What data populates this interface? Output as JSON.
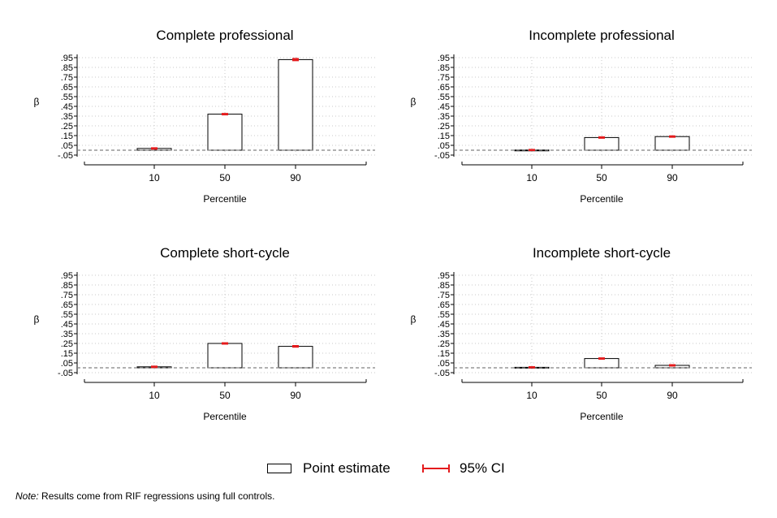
{
  "chart_data": [
    {
      "type": "bar",
      "title": "Complete professional",
      "xlabel": "Percentile",
      "ylabel": "β",
      "categories": [
        "10",
        "50",
        "90"
      ],
      "series": [
        {
          "values": [
            0.018,
            0.37,
            0.93
          ],
          "ci_low": [
            0.014,
            0.366,
            0.922
          ],
          "ci_high": [
            0.022,
            0.374,
            0.938
          ]
        }
      ],
      "ylim": [
        -0.05,
        0.95
      ],
      "yticks": [
        0.95,
        0.85,
        0.75,
        0.65,
        0.55,
        0.45,
        0.35,
        0.25,
        0.15,
        0.05,
        -0.05
      ],
      "ytick_labels": [
        ".95",
        ".85",
        ".75",
        ".65",
        ".55",
        ".45",
        ".35",
        ".25",
        ".15",
        ".05",
        "-.05"
      ],
      "reference_line": 0,
      "grid": true
    },
    {
      "type": "bar",
      "title": "Incomplete professional",
      "xlabel": "Percentile",
      "ylabel": "β",
      "categories": [
        "10",
        "50",
        "90"
      ],
      "series": [
        {
          "values": [
            0.002,
            0.13,
            0.14
          ],
          "ci_low": [
            -0.001,
            0.126,
            0.136
          ],
          "ci_high": [
            0.005,
            0.134,
            0.144
          ]
        }
      ],
      "ylim": [
        -0.05,
        0.95
      ],
      "yticks": [
        0.95,
        0.85,
        0.75,
        0.65,
        0.55,
        0.45,
        0.35,
        0.25,
        0.15,
        0.05,
        -0.05
      ],
      "ytick_labels": [
        ".95",
        ".85",
        ".75",
        ".65",
        ".55",
        ".45",
        ".35",
        ".25",
        ".15",
        ".05",
        "-.05"
      ],
      "reference_line": 0,
      "grid": true
    },
    {
      "type": "bar",
      "title": "Complete short-cycle",
      "xlabel": "Percentile",
      "ylabel": "β",
      "categories": [
        "10",
        "50",
        "90"
      ],
      "series": [
        {
          "values": [
            0.01,
            0.25,
            0.22
          ],
          "ci_low": [
            0.006,
            0.246,
            0.215
          ],
          "ci_high": [
            0.014,
            0.254,
            0.225
          ]
        }
      ],
      "ylim": [
        -0.05,
        0.95
      ],
      "yticks": [
        0.95,
        0.85,
        0.75,
        0.65,
        0.55,
        0.45,
        0.35,
        0.25,
        0.15,
        0.05,
        -0.05
      ],
      "ytick_labels": [
        ".95",
        ".85",
        ".75",
        ".65",
        ".55",
        ".45",
        ".35",
        ".25",
        ".15",
        ".05",
        "-.05"
      ],
      "reference_line": 0,
      "grid": true
    },
    {
      "type": "bar",
      "title": "Incomplete short-cycle",
      "xlabel": "Percentile",
      "ylabel": "β",
      "categories": [
        "10",
        "50",
        "90"
      ],
      "series": [
        {
          "values": [
            0.005,
            0.095,
            0.025
          ],
          "ci_low": [
            0.002,
            0.091,
            0.021
          ],
          "ci_high": [
            0.008,
            0.099,
            0.029
          ]
        }
      ],
      "ylim": [
        -0.05,
        0.95
      ],
      "yticks": [
        0.95,
        0.85,
        0.75,
        0.65,
        0.55,
        0.45,
        0.35,
        0.25,
        0.15,
        0.05,
        -0.05
      ],
      "ytick_labels": [
        ".95",
        ".85",
        ".75",
        ".65",
        ".55",
        ".45",
        ".35",
        ".25",
        ".15",
        ".05",
        "-.05"
      ],
      "reference_line": 0,
      "grid": true
    }
  ],
  "legend": {
    "point_estimate": "Point estimate",
    "ci": "95% CI"
  },
  "note": {
    "label": "Note:",
    "text": " Results come from RIF regressions using full controls."
  },
  "colors": {
    "ci": "#e41a1c",
    "bar_edge": "#000000",
    "grid": "#c8c8c8",
    "reference_line": "#808080"
  }
}
